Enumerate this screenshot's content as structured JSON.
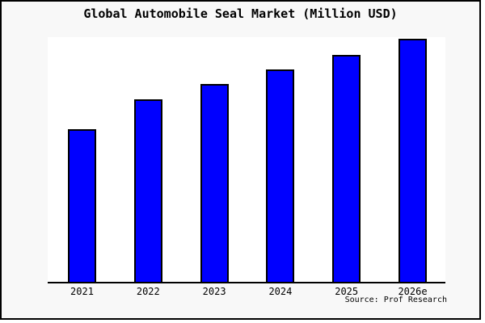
{
  "title": "Global Automobile Seal Market (Million USD)",
  "source": "Source: Prof Research",
  "chart_data": {
    "type": "bar",
    "categories": [
      "2021",
      "2022",
      "2023",
      "2024",
      "2025",
      "2026e"
    ],
    "values": [
      62.8,
      75.1,
      81.4,
      87.4,
      93.4,
      100
    ],
    "value_note": "No y-axis ticks or value labels are shown; values are relative bar heights as a percentage of the tallest (2026e) bar.",
    "title": "Global Automobile Seal Market (Million USD)",
    "xlabel": "",
    "ylabel": "",
    "ylim": [
      0,
      100
    ],
    "grid": false,
    "legend": null,
    "bar_color": "#0000ff",
    "bar_border_color": "#000000"
  },
  "colors": {
    "figure_background": "#f8f8f8",
    "plot_background": "#ffffff",
    "frame_border": "#000000",
    "axis_line": "#000000",
    "bar_fill": "#0000ff",
    "bar_border": "#000000",
    "text": "#000000"
  }
}
